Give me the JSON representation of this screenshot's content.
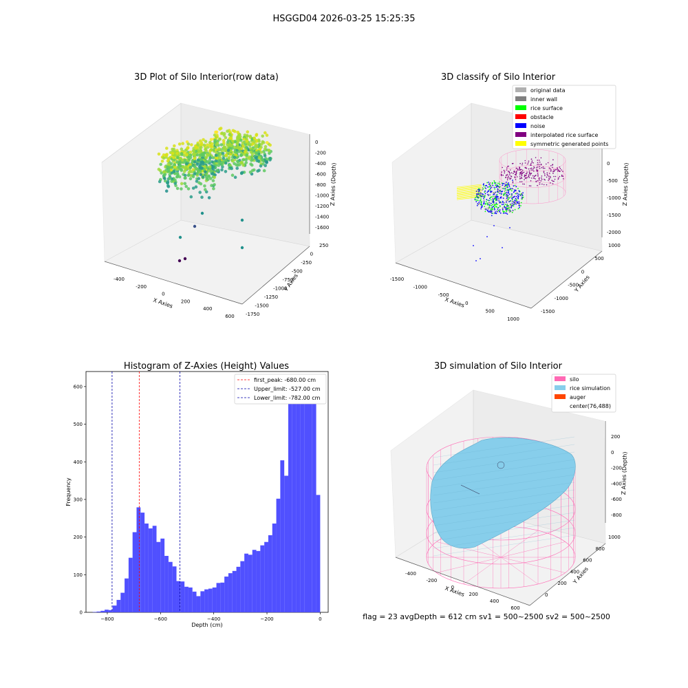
{
  "suptitle": "HSGGD04 2026-03-25 15:25:35",
  "footer_text": "flag = 23   avgDepth = 612 cm  sv1 = 500~2500  sv2 = 500~2500",
  "chart_data": [
    {
      "type": "scatter",
      "title": "3D Plot of Silo Interior(row data)",
      "xlabel": "X Axies",
      "ylabel": "Y Axies",
      "zlabel": "Z Axies (Depth)",
      "x_ticks": [
        "-400",
        "-200",
        "0",
        "200",
        "400",
        "600"
      ],
      "y_ticks": [
        "250",
        "0",
        "-250",
        "-500",
        "-750",
        "-1000",
        "-1250",
        "-1500",
        "-1750"
      ],
      "z_ticks": [
        "0",
        "-200",
        "-400",
        "-600",
        "-800",
        "-1000",
        "-1200",
        "-1400",
        "-1600"
      ],
      "colormap": "viridis"
    },
    {
      "type": "scatter",
      "title": "3D classify of Silo Interior",
      "xlabel": "X Axies",
      "ylabel": "Y Axies",
      "zlabel": "Z Axies (Depth)",
      "x_ticks": [
        "-1500",
        "-1000",
        "-500",
        "0",
        "500",
        "1000"
      ],
      "y_ticks": [
        "1000",
        "500",
        "0",
        "-500",
        "-1000",
        "-1500"
      ],
      "z_ticks": [
        "0",
        "-500",
        "-1000",
        "-1500",
        "-2000"
      ],
      "legend": [
        {
          "label": "original data",
          "color": "#b0b0b0"
        },
        {
          "label": "inner wall",
          "color": "#808080"
        },
        {
          "label": "rice surface",
          "color": "#00ff00"
        },
        {
          "label": "obstacle",
          "color": "#ff0000"
        },
        {
          "label": "noise",
          "color": "#0000ff"
        },
        {
          "label": "interpolated rice surface",
          "color": "#800080"
        },
        {
          "label": "symmetric generated points",
          "color": "#ffff00"
        }
      ]
    },
    {
      "type": "bar",
      "title": "Histogram of Z-Axies (Height) Values",
      "xlabel": "Depth (cm)",
      "ylabel": "Frequency",
      "bin_width": 15,
      "bins_start": [
        -855,
        -840,
        -825,
        -810,
        -795,
        -780,
        -765,
        -750,
        -735,
        -720,
        -705,
        -690,
        -675,
        -660,
        -645,
        -630,
        -615,
        -600,
        -585,
        -570,
        -555,
        -540,
        -525,
        -510,
        -495,
        -480,
        -465,
        -450,
        -435,
        -420,
        -405,
        -390,
        -375,
        -360,
        -345,
        -330,
        -315,
        -300,
        -285,
        -270,
        -255,
        -240,
        -225,
        -210,
        -195,
        -180,
        -165,
        -150,
        -135,
        -120,
        -105,
        -90,
        -75,
        -60,
        -45,
        -30,
        -15
      ],
      "values": [
        1,
        2,
        4,
        7,
        6,
        18,
        33,
        52,
        90,
        145,
        213,
        279,
        265,
        236,
        223,
        230,
        187,
        196,
        150,
        134,
        122,
        83,
        82,
        68,
        66,
        55,
        43,
        56,
        61,
        63,
        66,
        78,
        79,
        95,
        104,
        110,
        121,
        136,
        156,
        153,
        166,
        163,
        178,
        187,
        205,
        236,
        302,
        404,
        363,
        612,
        582,
        560,
        590,
        620,
        600,
        620,
        312
      ],
      "xlim": [
        -880,
        30
      ],
      "ylim": [
        0,
        640
      ],
      "x_ticks": [
        -800,
        -600,
        -400,
        -200,
        0
      ],
      "y_ticks": [
        0,
        100,
        200,
        300,
        400,
        500,
        600
      ],
      "color": "#4d4dff",
      "vlines": [
        {
          "x": -680,
          "color": "#ff0000",
          "label": "first_peak: -680.00 cm"
        },
        {
          "x": -527,
          "color": "#0000aa",
          "label": "Upper_limit: -527.00 cm"
        },
        {
          "x": -782,
          "color": "#0000aa",
          "label": "Lower_limit: -782.00 cm"
        }
      ]
    },
    {
      "type": "surface",
      "title": "3D simulation of Silo Interior",
      "xlabel": "X Axies",
      "ylabel": "Y Axies",
      "zlabel": "Z Axies (Depth)",
      "x_ticks": [
        "-400",
        "-200",
        "0",
        "200",
        "400",
        "600"
      ],
      "y_ticks": [
        "1000",
        "800",
        "600",
        "400",
        "200",
        "0"
      ],
      "z_ticks": [
        "200",
        "0",
        "-200",
        "-400",
        "-600",
        "-800"
      ],
      "legend": [
        {
          "label": "silo",
          "color": "#ff69b4"
        },
        {
          "label": "rice simulation",
          "color": "#87ceeb"
        },
        {
          "label": "auger",
          "color": "#ff4500"
        },
        {
          "label": "center(76,488)",
          "color": ""
        }
      ]
    }
  ]
}
